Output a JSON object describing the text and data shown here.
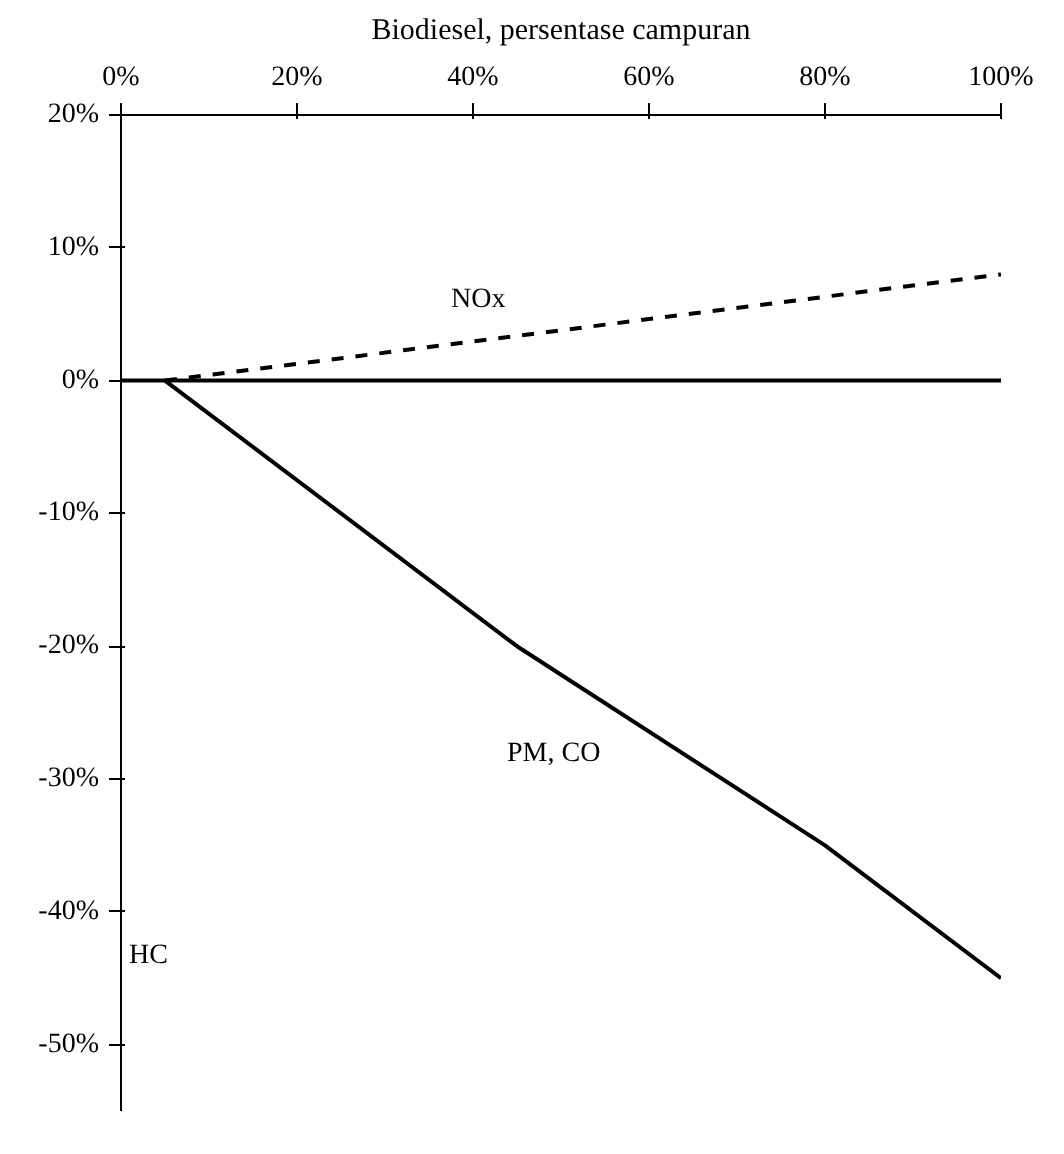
{
  "chart_data": {
    "type": "line",
    "title": "Biodiesel, persentase campuran",
    "xlim": [
      0,
      100
    ],
    "xticks": [
      {
        "value": 0,
        "label": "0%"
      },
      {
        "value": 20,
        "label": "20%"
      },
      {
        "value": 40,
        "label": "40%"
      },
      {
        "value": 60,
        "label": "60%"
      },
      {
        "value": 80,
        "label": "80%"
      },
      {
        "value": 100,
        "label": "100%"
      }
    ],
    "ylim": [
      -55,
      20
    ],
    "yticks": [
      {
        "value": 20,
        "label": "20%"
      },
      {
        "value": 10,
        "label": "10%"
      },
      {
        "value": 0,
        "label": "0%"
      },
      {
        "value": -10,
        "label": "-10%"
      },
      {
        "value": -20,
        "label": "-20%"
      },
      {
        "value": -30,
        "label": "-30%"
      },
      {
        "value": -40,
        "label": "-40%"
      },
      {
        "value": -50,
        "label": "-50%"
      }
    ],
    "grid": false,
    "series": [
      {
        "name": "NOx",
        "color": "#000000",
        "line_style": "dashed",
        "x": [
          5,
          100
        ],
        "values": [
          0,
          8
        ]
      },
      {
        "name": "PM, CO",
        "color": "#000000",
        "line_style": "solid",
        "x": [
          5,
          45,
          80,
          100
        ],
        "values": [
          0,
          -20,
          -35,
          -45
        ]
      }
    ],
    "ref_lines": [
      {
        "axis": "y",
        "value": 0,
        "color": "#000000",
        "line_style": "solid"
      }
    ],
    "annotations": [
      "HC"
    ]
  }
}
